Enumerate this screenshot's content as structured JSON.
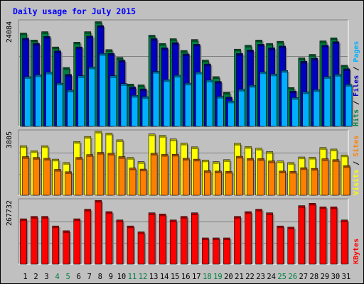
{
  "chart_data": {
    "type": "bar",
    "title": "Daily usage for July 2015",
    "days": [
      "1",
      "2",
      "3",
      "4",
      "5",
      "6",
      "7",
      "8",
      "9",
      "10",
      "11",
      "12",
      "13",
      "14",
      "15",
      "16",
      "17",
      "18",
      "19",
      "20",
      "21",
      "22",
      "23",
      "24",
      "25",
      "26",
      "27",
      "28",
      "29",
      "30",
      "31"
    ],
    "weekend_days": [
      4,
      5,
      11,
      12,
      18,
      19,
      25,
      26
    ],
    "panels": [
      {
        "id": "hits-panel",
        "max_label": "24084",
        "ymax": 24084,
        "legend": [
          {
            "text": "Hits",
            "color": "#008040"
          },
          {
            "text": " / ",
            "color": "#000000"
          },
          {
            "text": "Files",
            "color": "#0000c0"
          },
          {
            "text": " / ",
            "color": "#000000"
          },
          {
            "text": "Pages",
            "color": "#00b0ff"
          }
        ],
        "series": [
          {
            "name": "Hits",
            "color": "#008040",
            "values": [
              21400,
              19800,
              21700,
              18200,
              13500,
              19300,
              21700,
              24000,
              17600,
              15800,
              9700,
              9500,
              20900,
              19000,
              20100,
              17400,
              19900,
              15200,
              11400,
              7800,
              17700,
              18600,
              19800,
              19000,
              19500,
              8900,
              15700,
              16500,
              19600,
              20300,
              14000
            ]
          },
          {
            "name": "Files",
            "color": "#0000c0",
            "values": [
              20200,
              19000,
              20600,
              17300,
              11900,
              18200,
              20700,
              23100,
              16700,
              15100,
              9000,
              8600,
              20100,
              18000,
              19200,
              16600,
              18800,
              14300,
              10300,
              6700,
              16700,
              17500,
              18800,
              18000,
              18400,
              8100,
              14900,
              15600,
              18600,
              19400,
              13200
            ]
          },
          {
            "name": "Pages",
            "color": "#00b0ff",
            "values": [
              11400,
              11800,
              12400,
              9900,
              8300,
              11600,
              13600,
              16700,
              11600,
              9800,
              7100,
              6800,
              12600,
              10700,
              11700,
              9900,
              12400,
              10600,
              6900,
              5800,
              8500,
              9400,
              12500,
              12000,
              12800,
              6600,
              7900,
              8400,
              11400,
              11900,
              9600
            ]
          }
        ]
      },
      {
        "id": "visits-panel",
        "max_label": "3805",
        "ymax": 3805,
        "legend": [
          {
            "text": "Visits",
            "color": "#ffff00"
          },
          {
            "text": " / ",
            "color": "#000000"
          },
          {
            "text": "Sites",
            "color": "#ff8000"
          }
        ],
        "series": [
          {
            "name": "Visits",
            "color": "#ffff00",
            "values": [
              2950,
              2650,
              2950,
              2150,
              1950,
              3200,
              3500,
              3805,
              3700,
              3300,
              2250,
              2000,
              3650,
              3560,
              3350,
              3100,
              2880,
              2100,
              2000,
              2120,
              3090,
              2900,
              2800,
              2600,
              2040,
              1950,
              2280,
              2260,
              2840,
              2750,
              2400
            ]
          },
          {
            "name": "Sites",
            "color": "#ff8000",
            "values": [
              2300,
              2250,
              2200,
              1540,
              1400,
              2250,
              2420,
              2550,
              2500,
              2300,
              1620,
              1560,
              2500,
              2430,
              2440,
              2200,
              2150,
              1460,
              1440,
              1420,
              2320,
              2190,
              2180,
              2040,
              1440,
              1420,
              1640,
              1600,
              2170,
              2120,
              1760
            ]
          }
        ]
      },
      {
        "id": "kbytes-panel",
        "max_label": "267732",
        "ymax": 267732,
        "legend": [
          {
            "text": "KBytes",
            "color": "#ff0000"
          }
        ],
        "series": [
          {
            "name": "KBytes",
            "color": "#ff0000",
            "values": [
              190000,
              200000,
              200000,
              160000,
              140000,
              190000,
              230000,
              267000,
              220000,
              185000,
              160000,
              135000,
              215000,
              210000,
              185000,
              200000,
              215000,
              110000,
              110000,
              110000,
              200000,
              220000,
              230000,
              215000,
              160000,
              155000,
              245000,
              255000,
              240000,
              240000,
              185000
            ]
          }
        ]
      }
    ]
  }
}
